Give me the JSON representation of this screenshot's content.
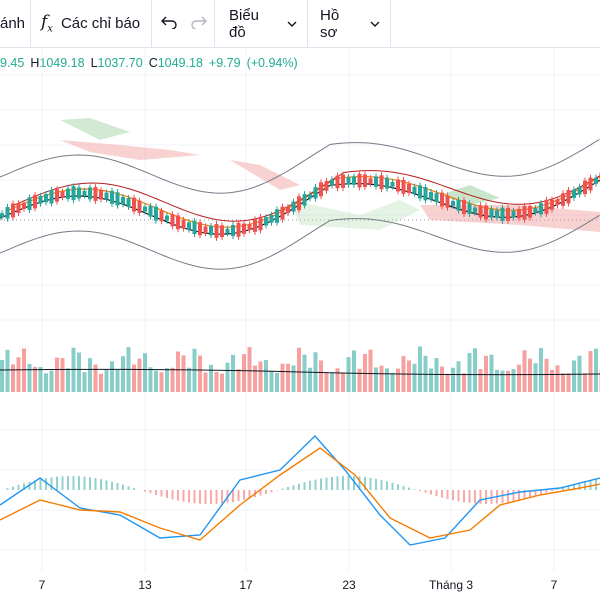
{
  "toolbar": {
    "first_item": "ánh",
    "indicators_label": "Các chỉ báo",
    "chart_label": "Biểu đồ",
    "profile_label": "Hồ sơ",
    "icons": [
      "fx-icon",
      "undo-icon",
      "redo-icon",
      "chevron-down-icon"
    ]
  },
  "ohlc": {
    "open_value": "9.45",
    "high_label": "H",
    "high_value": "1049.18",
    "low_label": "L",
    "low_value": "1037.70",
    "close_label": "C",
    "close_value": "1049.18",
    "change": "+9.79",
    "change_pct": "(+0.94%)"
  },
  "colors": {
    "up": "#26a69a",
    "down": "#ef5350",
    "orange": "#f57c00",
    "macd_line": "#2196f3",
    "cloud_green": "#a5d6a7",
    "cloud_red": "#ef9a9a"
  },
  "xaxis": {
    "labels": [
      "7",
      "13",
      "17",
      "23",
      "Tháng 3",
      "7"
    ]
  }
}
